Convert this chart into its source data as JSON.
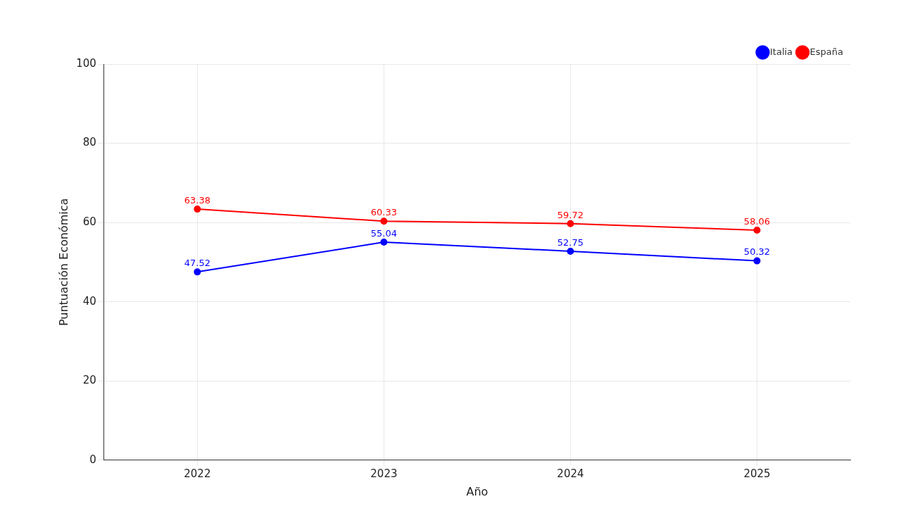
{
  "chart_data": {
    "type": "line",
    "xlabel": "Año",
    "ylabel": "Puntuación Económica",
    "categories": [
      "2022",
      "2023",
      "2024",
      "2025"
    ],
    "series": [
      {
        "name": "Italia",
        "color": "#0000ff",
        "values": [
          47.52,
          55.04,
          52.75,
          50.32
        ]
      },
      {
        "name": "España",
        "color": "#ff0000",
        "values": [
          63.38,
          60.33,
          59.72,
          58.06
        ]
      }
    ],
    "ylim": [
      0,
      100
    ],
    "yticks": [
      0,
      20,
      40,
      60,
      80,
      100
    ],
    "grid": true,
    "legend": "top right",
    "marker": "circle",
    "line_style": "solid",
    "data_labels": true
  }
}
